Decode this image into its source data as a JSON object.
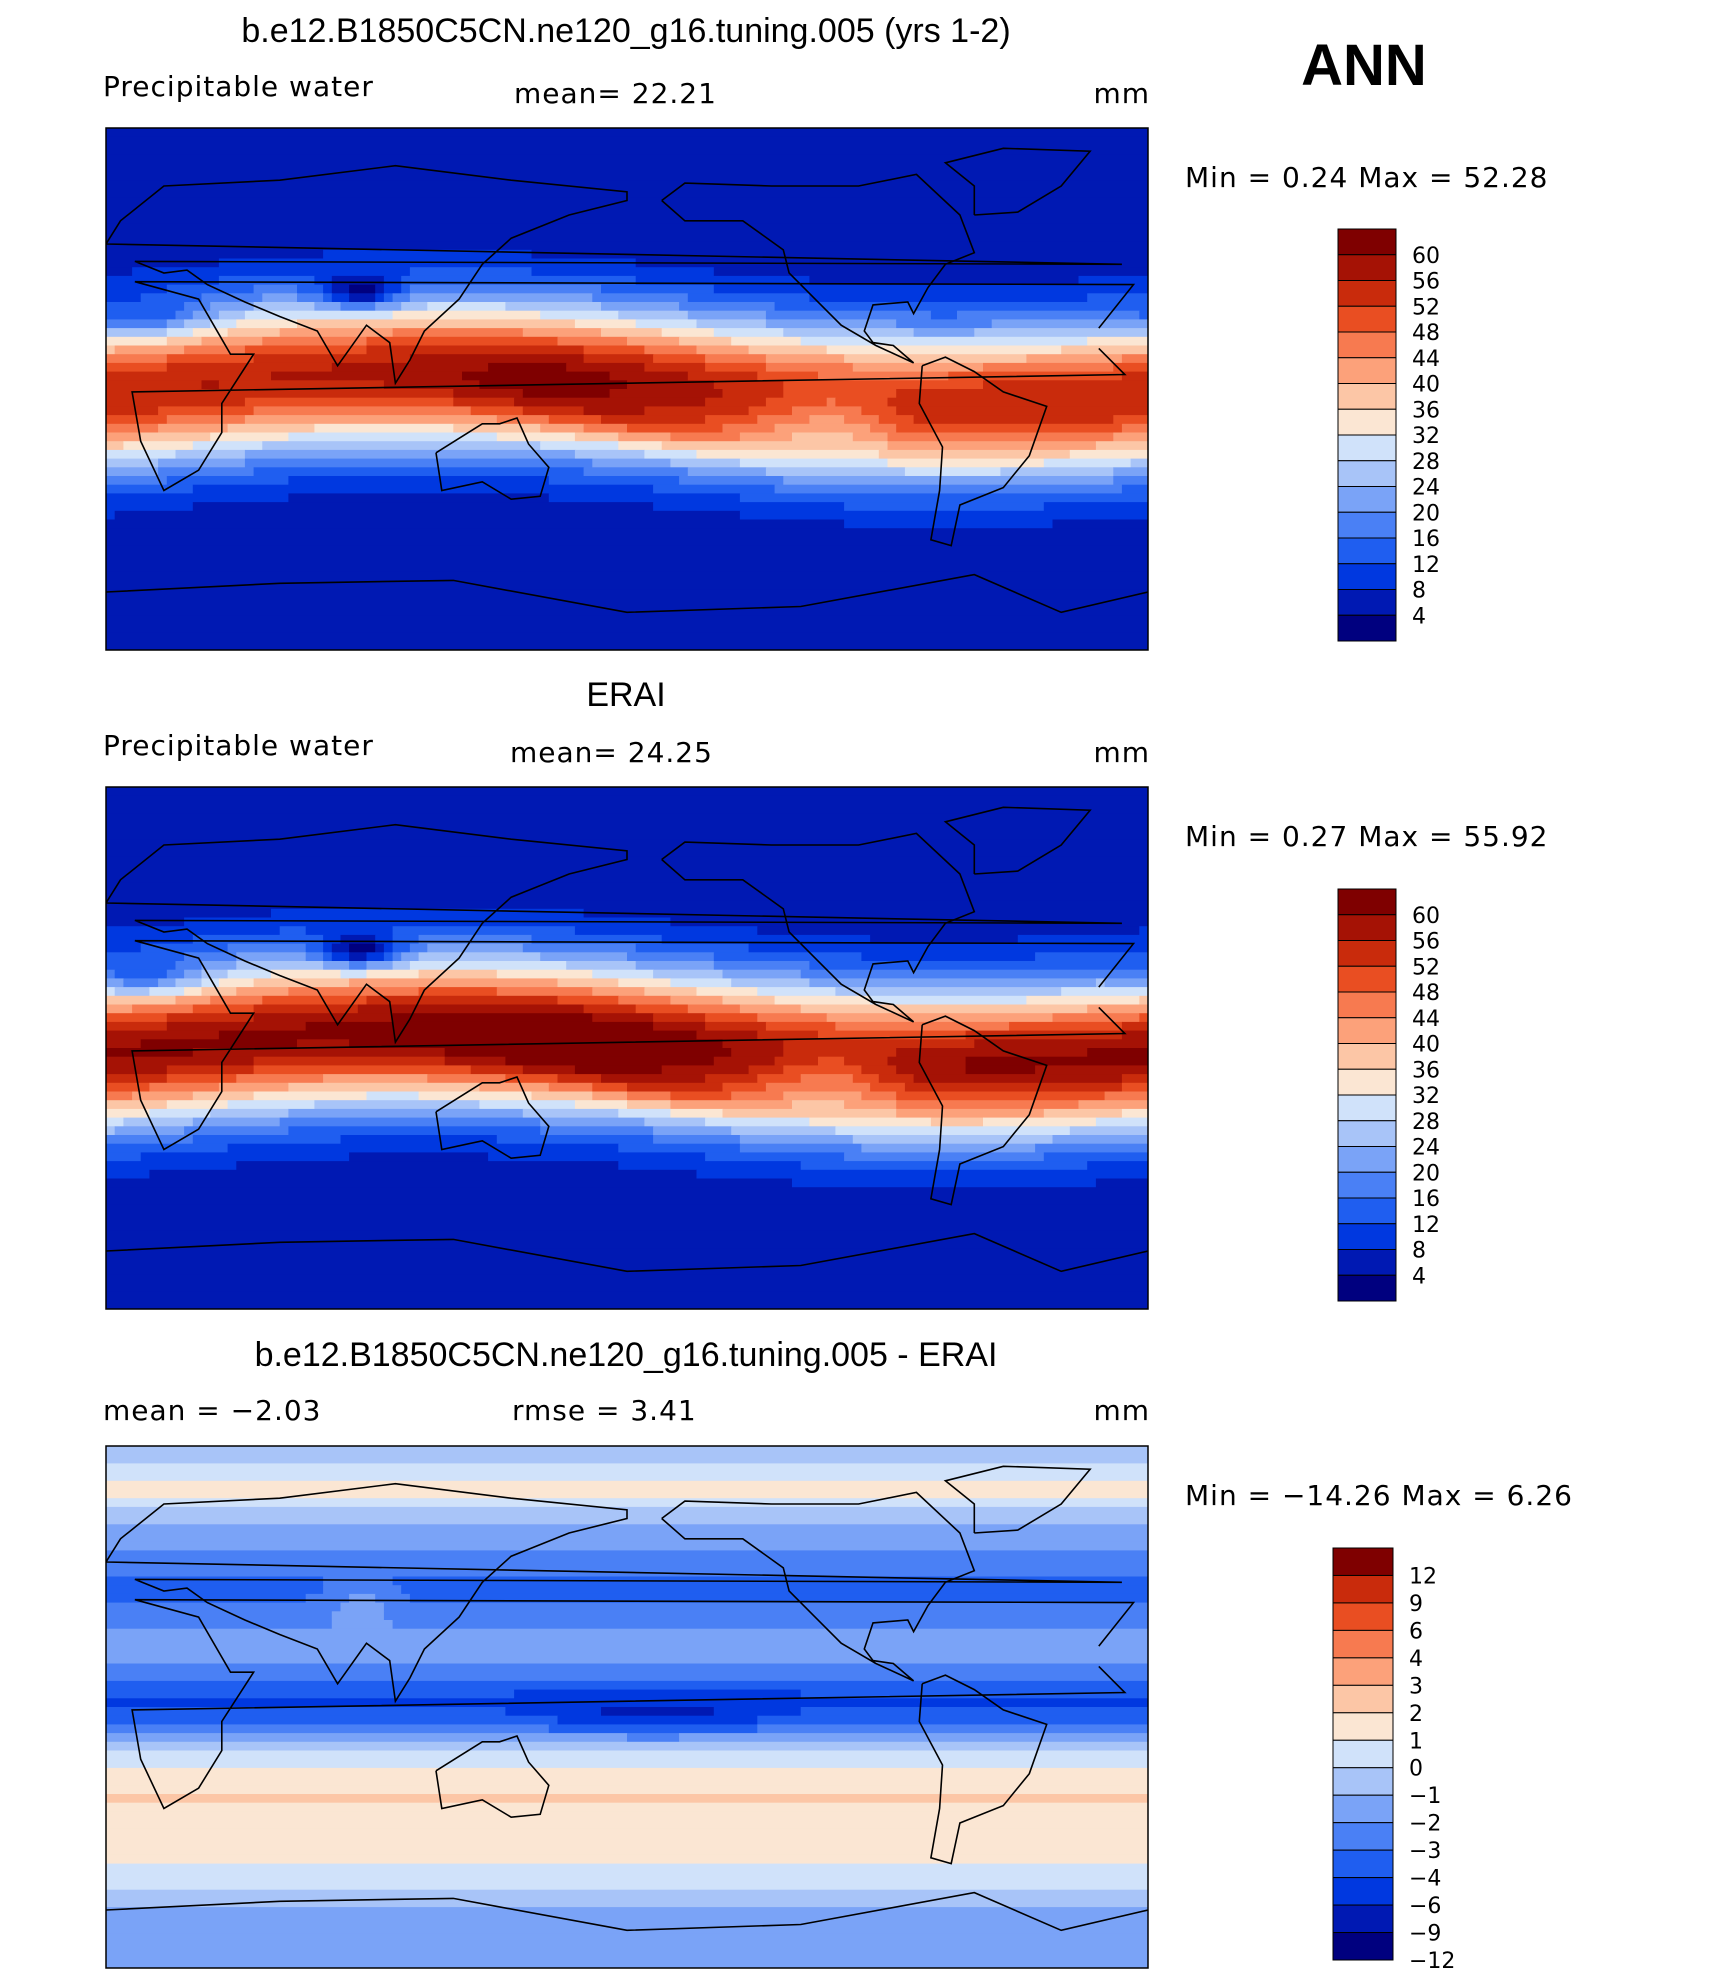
{
  "season": "ANN",
  "colors": {
    "full_scale": [
      "#00007f",
      "#0019b3",
      "#0038e0",
      "#1f5ef0",
      "#4a80f5",
      "#7aa3f7",
      "#a8c4f8",
      "#d0e2fa",
      "#fbe6d3",
      "#fcc6a6",
      "#fca17a",
      "#f77a50",
      "#e94e22",
      "#c92b0c",
      "#a51205",
      "#7f0000"
    ],
    "diff_scale": [
      "#00007f",
      "#0019b3",
      "#0038e0",
      "#1f5ef0",
      "#4a80f5",
      "#7aa3f7",
      "#a8c4f8",
      "#d0e2fa",
      "#fbe6d3",
      "#fcc6a6",
      "#fca17a",
      "#f77a50",
      "#e94e22",
      "#c92b0c",
      "#7f0000"
    ],
    "land_outline": "#000000"
  },
  "panels": [
    {
      "title": "b.e12.B1850C5CN.ne120_g16.tuning.005 (yrs 1-2)",
      "left_label": "Precipitable  water",
      "center_label": "mean=   22.21",
      "units": "mm",
      "minmax": "Min  =    0.24  Max  =    52.28",
      "variant": "model"
    },
    {
      "title": "ERAI",
      "left_label": "Precipitable  water",
      "center_label": "mean=   24.25",
      "units": "mm",
      "minmax": "Min  =    0.27  Max  =    55.92",
      "variant": "obs"
    },
    {
      "title": "b.e12.B1850C5CN.ne120_g16.tuning.005 - ERAI",
      "left_label": "mean  =    −2.03",
      "center_label": "rmse  =     3.41",
      "units": "mm",
      "minmax": "Min  = −14.26  Max  =     6.26",
      "variant": "diff"
    }
  ],
  "chart_data": [
    {
      "type": "heatmap",
      "title": "b.e12.B1850C5CN.ne120_g16.tuning.005 (yrs 1-2)",
      "variable": "Precipitable  water",
      "units": "mm",
      "mean": 22.21,
      "min": 0.24,
      "max": 52.28,
      "colorbar_levels": [
        4,
        8,
        12,
        16,
        20,
        24,
        28,
        32,
        36,
        40,
        44,
        48,
        52,
        56,
        60
      ]
    },
    {
      "type": "heatmap",
      "title": "ERAI",
      "variable": "Precipitable  water",
      "units": "mm",
      "mean": 24.25,
      "min": 0.27,
      "max": 55.92,
      "colorbar_levels": [
        4,
        8,
        12,
        16,
        20,
        24,
        28,
        32,
        36,
        40,
        44,
        48,
        52,
        56,
        60
      ]
    },
    {
      "type": "heatmap",
      "title": "b.e12.B1850C5CN.ne120_g16.tuning.005 - ERAI",
      "units": "mm",
      "mean": -2.03,
      "rmse": 3.41,
      "min": -14.26,
      "max": 6.26,
      "colorbar_levels": [
        -12,
        -9,
        -6,
        -4,
        -3,
        -2,
        -1,
        0,
        1,
        2,
        3,
        4,
        6,
        9,
        12
      ]
    }
  ],
  "colorbar_labels": {
    "full": [
      "60",
      "56",
      "52",
      "48",
      "44",
      "40",
      "36",
      "32",
      "28",
      "24",
      "20",
      "16",
      "12",
      "8",
      "4"
    ],
    "diff": [
      "12",
      "9",
      "6",
      "4",
      "3",
      "2",
      "1",
      "0",
      "−1",
      "−2",
      "−3",
      "−4",
      "−6",
      "−9",
      "−12"
    ]
  }
}
